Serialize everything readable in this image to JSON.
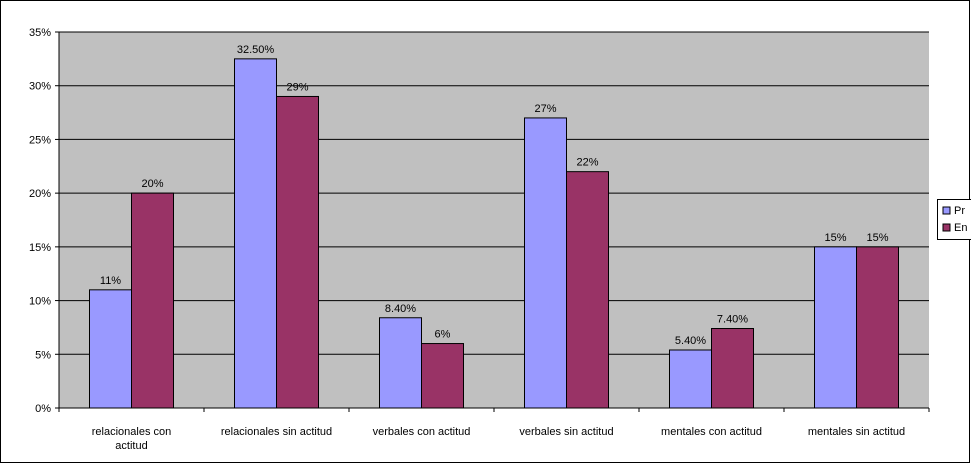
{
  "chart_data": {
    "type": "bar",
    "title": "",
    "xlabel": "",
    "ylabel": "",
    "ylim": [
      0,
      35
    ],
    "y_ticks": [
      "0%",
      "5%",
      "10%",
      "15%",
      "20%",
      "25%",
      "30%",
      "35%"
    ],
    "y_tick_values": [
      0,
      5,
      10,
      15,
      20,
      25,
      30,
      35
    ],
    "grid": true,
    "legend_position": "right",
    "categories": [
      [
        "relacionales con",
        "actitud"
      ],
      [
        "relacionales sin actitud"
      ],
      [
        "verbales con actitud"
      ],
      [
        "verbales sin actitud"
      ],
      [
        "mentales con actitud"
      ],
      [
        "mentales sin actitud"
      ]
    ],
    "series": [
      {
        "name": "Pr",
        "color": "#9999ff",
        "values": [
          11,
          32.5,
          8.4,
          27,
          5.4,
          15
        ],
        "labels": [
          "11%",
          "32.50%",
          "8.40%",
          "27%",
          "5.40%",
          "15%"
        ]
      },
      {
        "name": "En",
        "color": "#993366",
        "values": [
          20,
          29,
          6,
          22,
          7.4,
          15
        ],
        "labels": [
          "20%",
          "29%",
          "6%",
          "22%",
          "7.40%",
          "15%"
        ]
      }
    ],
    "plot_background": "#c0c0c0"
  }
}
